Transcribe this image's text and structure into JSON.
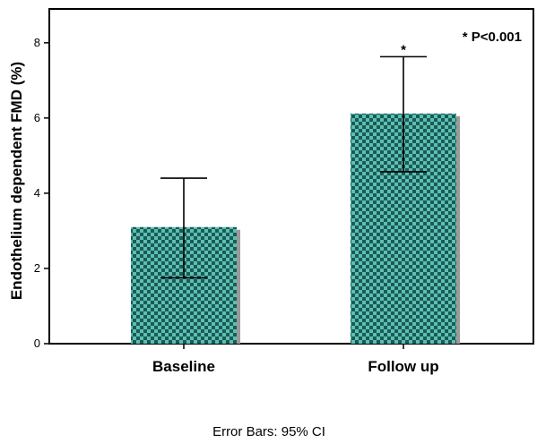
{
  "chart_data": {
    "type": "bar",
    "categories": [
      "Baseline",
      "Follow up"
    ],
    "values": [
      3.1,
      6.12
    ],
    "error_bars": [
      {
        "lower": 1.75,
        "upper": 4.4
      },
      {
        "lower": 4.57,
        "upper": 7.63
      }
    ],
    "bar_labels": [
      "",
      "*"
    ],
    "ylabel": "Endothelium dependent FMD (%)",
    "xlabel": "",
    "ylim": [
      0,
      8.9
    ],
    "yticks": [
      0,
      2,
      4,
      6,
      8
    ],
    "ytick_labels": [
      "0",
      "2",
      "4",
      "6",
      "8"
    ],
    "annotation": "* P<0.001",
    "footer": "Error Bars: 95% CI",
    "colors": {
      "bar_fill_dark": "#1c5a55",
      "bar_fill_light": "#5bbfb2",
      "bar_shadow": "#9a9a9a",
      "axis": "#000000"
    }
  }
}
